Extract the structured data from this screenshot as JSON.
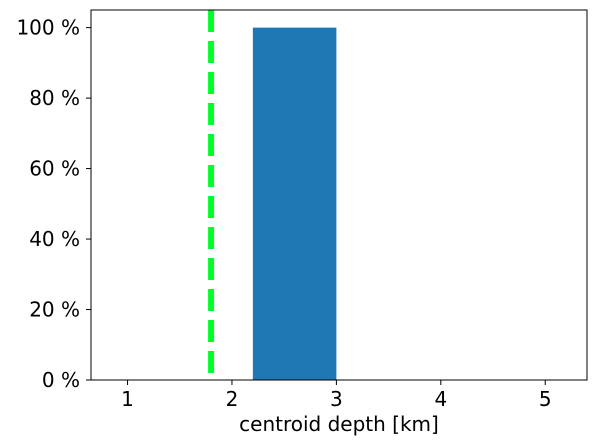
{
  "chart_data": {
    "type": "bar",
    "title": "",
    "xlabel": "centroid depth [km]",
    "ylabel": "",
    "xlim": [
      0.65,
      5.4
    ],
    "ylim": [
      0,
      105
    ],
    "x_ticks": [
      1,
      2,
      3,
      4,
      5
    ],
    "x_tick_labels": [
      "1",
      "2",
      "3",
      "4",
      "5"
    ],
    "y_ticks": [
      0,
      20,
      40,
      60,
      80,
      100
    ],
    "y_tick_labels": [
      "0 %",
      "20 %",
      "40 %",
      "60 %",
      "80 %",
      "100 %"
    ],
    "bars": [
      {
        "x_start": 2.2,
        "x_end": 3.0,
        "value": 100
      }
    ],
    "reference_lines": [
      {
        "orientation": "vertical",
        "x": 1.8,
        "style": "dashed"
      }
    ],
    "grid": false,
    "legend": "none",
    "colors": {
      "bar": "#1f77b4",
      "reference_line": "#00ff2a",
      "axis": "#000000"
    }
  }
}
